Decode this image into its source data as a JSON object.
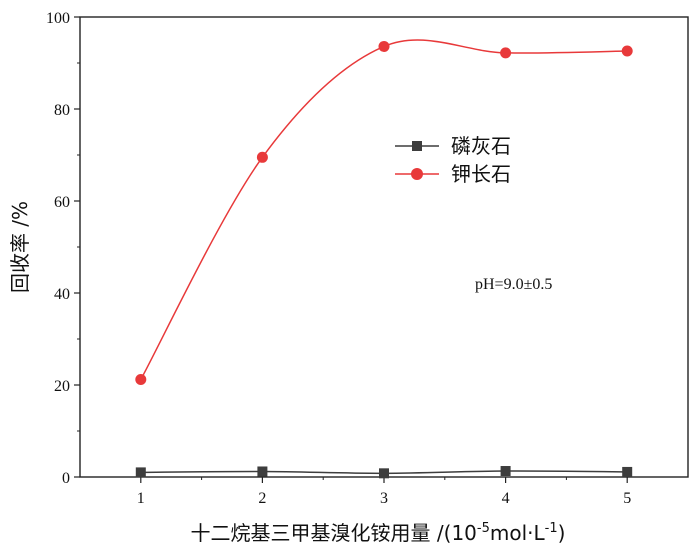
{
  "chart_data": {
    "type": "line",
    "x": [
      1,
      2,
      3,
      4,
      5
    ],
    "xlim": [
      0.5,
      5.5
    ],
    "ylim": [
      0,
      100
    ],
    "x_ticks": [
      1,
      2,
      3,
      4,
      5
    ],
    "y_ticks": [
      0,
      20,
      40,
      60,
      80,
      100
    ],
    "xlabel": {
      "main": "十二烷基三甲基溴化铵用量 /(10",
      "exp1": "-5",
      "mid": "mol·L",
      "exp2": "-1",
      "end": ")"
    },
    "ylabel": "回收率 /%",
    "legend_position": "upper-middle",
    "annotation": "pH=9.0±0.5",
    "series": [
      {
        "name": "磷灰石",
        "marker": "square",
        "color": "#3d3d3d",
        "values": [
          1.0,
          1.2,
          0.8,
          1.3,
          1.1
        ]
      },
      {
        "name": "钾长石",
        "marker": "circle",
        "color": "#e8393a",
        "values": [
          21.2,
          69.5,
          93.6,
          92.2,
          92.6
        ]
      }
    ]
  }
}
